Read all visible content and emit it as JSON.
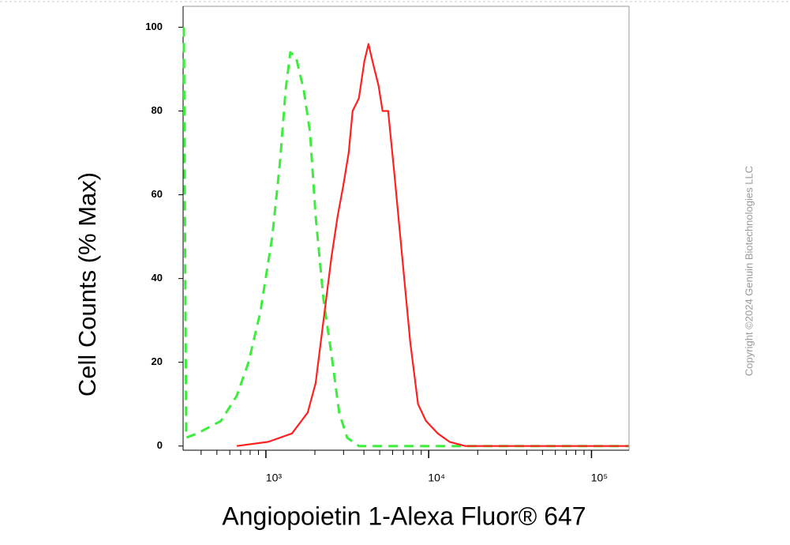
{
  "chart_data": {
    "type": "line",
    "x_label": "Angiopoietin 1-Alexa Fluor® 647",
    "y_label": "Cell Counts (% Max)",
    "copyright": "Copyright ©2024 Genuin Biotechnologies LLC",
    "xscale": "log",
    "xlim": [
      310,
      170000
    ],
    "ylim": [
      -1,
      105
    ],
    "xticks": [
      {
        "value": 1000,
        "label": "10³"
      },
      {
        "value": 10000,
        "label": "10⁴"
      },
      {
        "value": 100000,
        "label": "10⁵"
      }
    ],
    "xminorticks": [
      400,
      500,
      600,
      700,
      800,
      900,
      2000,
      3000,
      4000,
      5000,
      6000,
      7000,
      8000,
      9000,
      20000,
      30000,
      40000,
      50000,
      60000,
      70000,
      80000,
      90000
    ],
    "yticks": [
      0,
      20,
      40,
      60,
      80,
      100
    ],
    "series": [
      {
        "color": "#3ded3d",
        "dashed": true,
        "x": [
          313,
          324,
          379,
          530,
          662,
          782,
          925,
          1094,
          1222,
          1321,
          1413,
          1528,
          1708,
          1867,
          2019,
          2258,
          2524,
          2820,
          3155,
          3724,
          169000
        ],
        "values": [
          100,
          2,
          3,
          6,
          12,
          20,
          32,
          50,
          68,
          85,
          94,
          93,
          85,
          75,
          55,
          35,
          22,
          8,
          2,
          0,
          0
        ]
      },
      {
        "color": "#ff2020",
        "dashed": false,
        "x": [
          662,
          1034,
          1445,
          1806,
          2019,
          2258,
          2524,
          2760,
          2983,
          3224,
          3409,
          3724,
          4029,
          4266,
          4508,
          4922,
          5208,
          5633,
          6151,
          6882,
          7691,
          8605,
          9614,
          11370,
          13430,
          16790,
          169000
        ],
        "values": [
          0,
          1,
          3,
          8,
          15,
          30,
          45,
          55,
          62,
          70,
          80,
          83,
          92,
          96,
          92,
          86,
          80,
          80,
          65,
          45,
          25,
          10,
          6,
          3,
          1,
          0,
          0
        ]
      }
    ]
  }
}
